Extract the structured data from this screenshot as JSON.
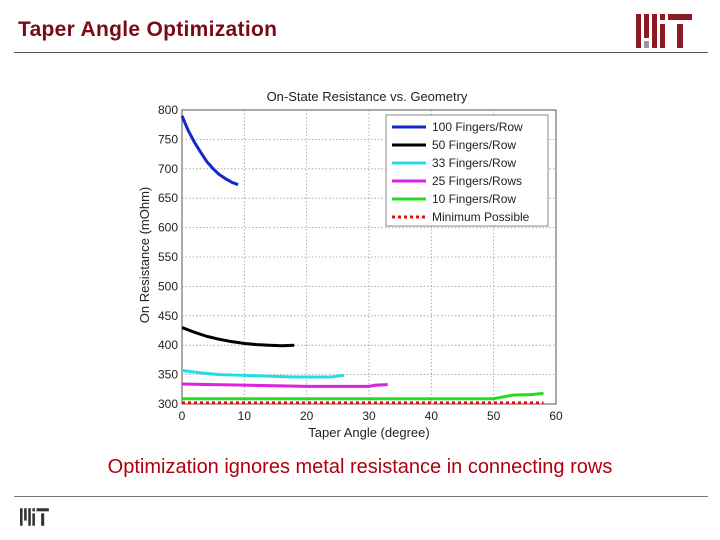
{
  "slide": {
    "title": "Taper Angle Optimization",
    "caption": "Optimization ignores metal resistance in connecting rows"
  },
  "logo": {
    "name": "mit-logo",
    "color": "#8b1a25"
  },
  "chart_data": {
    "type": "line",
    "title": "On-State Resistance vs. Geometry",
    "xlabel": "Taper Angle (degree)",
    "ylabel": "On Resistance (mOhm)",
    "xlim": [
      0,
      60
    ],
    "ylim": [
      300,
      800
    ],
    "xticks": [
      0,
      10,
      20,
      30,
      40,
      50,
      60
    ],
    "yticks": [
      300,
      350,
      400,
      450,
      500,
      550,
      600,
      650,
      700,
      750,
      800
    ],
    "grid": true,
    "legend_position": "top-right",
    "series": [
      {
        "name": "100 Fingers/Row",
        "color": "#1428c8",
        "dash": "solid",
        "x": [
          0,
          1,
          2,
          3,
          4,
          5,
          6,
          7,
          8,
          9
        ],
        "y": [
          790,
          765,
          745,
          728,
          712,
          700,
          690,
          683,
          677,
          673
        ]
      },
      {
        "name": "50 Fingers/Row",
        "color": "#000000",
        "dash": "solid",
        "x": [
          0,
          2,
          4,
          6,
          8,
          10,
          12,
          14,
          16,
          18
        ],
        "y": [
          430,
          422,
          415,
          410,
          406,
          403,
          401,
          400,
          399,
          400
        ]
      },
      {
        "name": "33 Fingers/Row",
        "color": "#22dde8",
        "dash": "solid",
        "x": [
          0,
          3,
          6,
          9,
          12,
          15,
          18,
          21,
          24,
          26
        ],
        "y": [
          357,
          353,
          350,
          349,
          348,
          347,
          346,
          346,
          346,
          349
        ]
      },
      {
        "name": "25 Fingers/Rows",
        "color": "#e020e0",
        "dash": "solid",
        "x": [
          0,
          5,
          10,
          15,
          20,
          25,
          30,
          31,
          33
        ],
        "y": [
          334,
          333,
          332,
          331,
          330,
          330,
          330,
          332,
          333
        ]
      },
      {
        "name": "10 Fingers/Row",
        "color": "#22dd22",
        "dash": "solid",
        "x": [
          0,
          10,
          20,
          30,
          40,
          50,
          53,
          56,
          58
        ],
        "y": [
          309,
          309,
          309,
          309,
          309,
          309,
          315,
          316,
          318
        ]
      },
      {
        "name": "Minimum Possible",
        "color": "#e01010",
        "dash": "dotted",
        "x": [
          0,
          58
        ],
        "y": [
          302,
          302
        ]
      }
    ]
  }
}
